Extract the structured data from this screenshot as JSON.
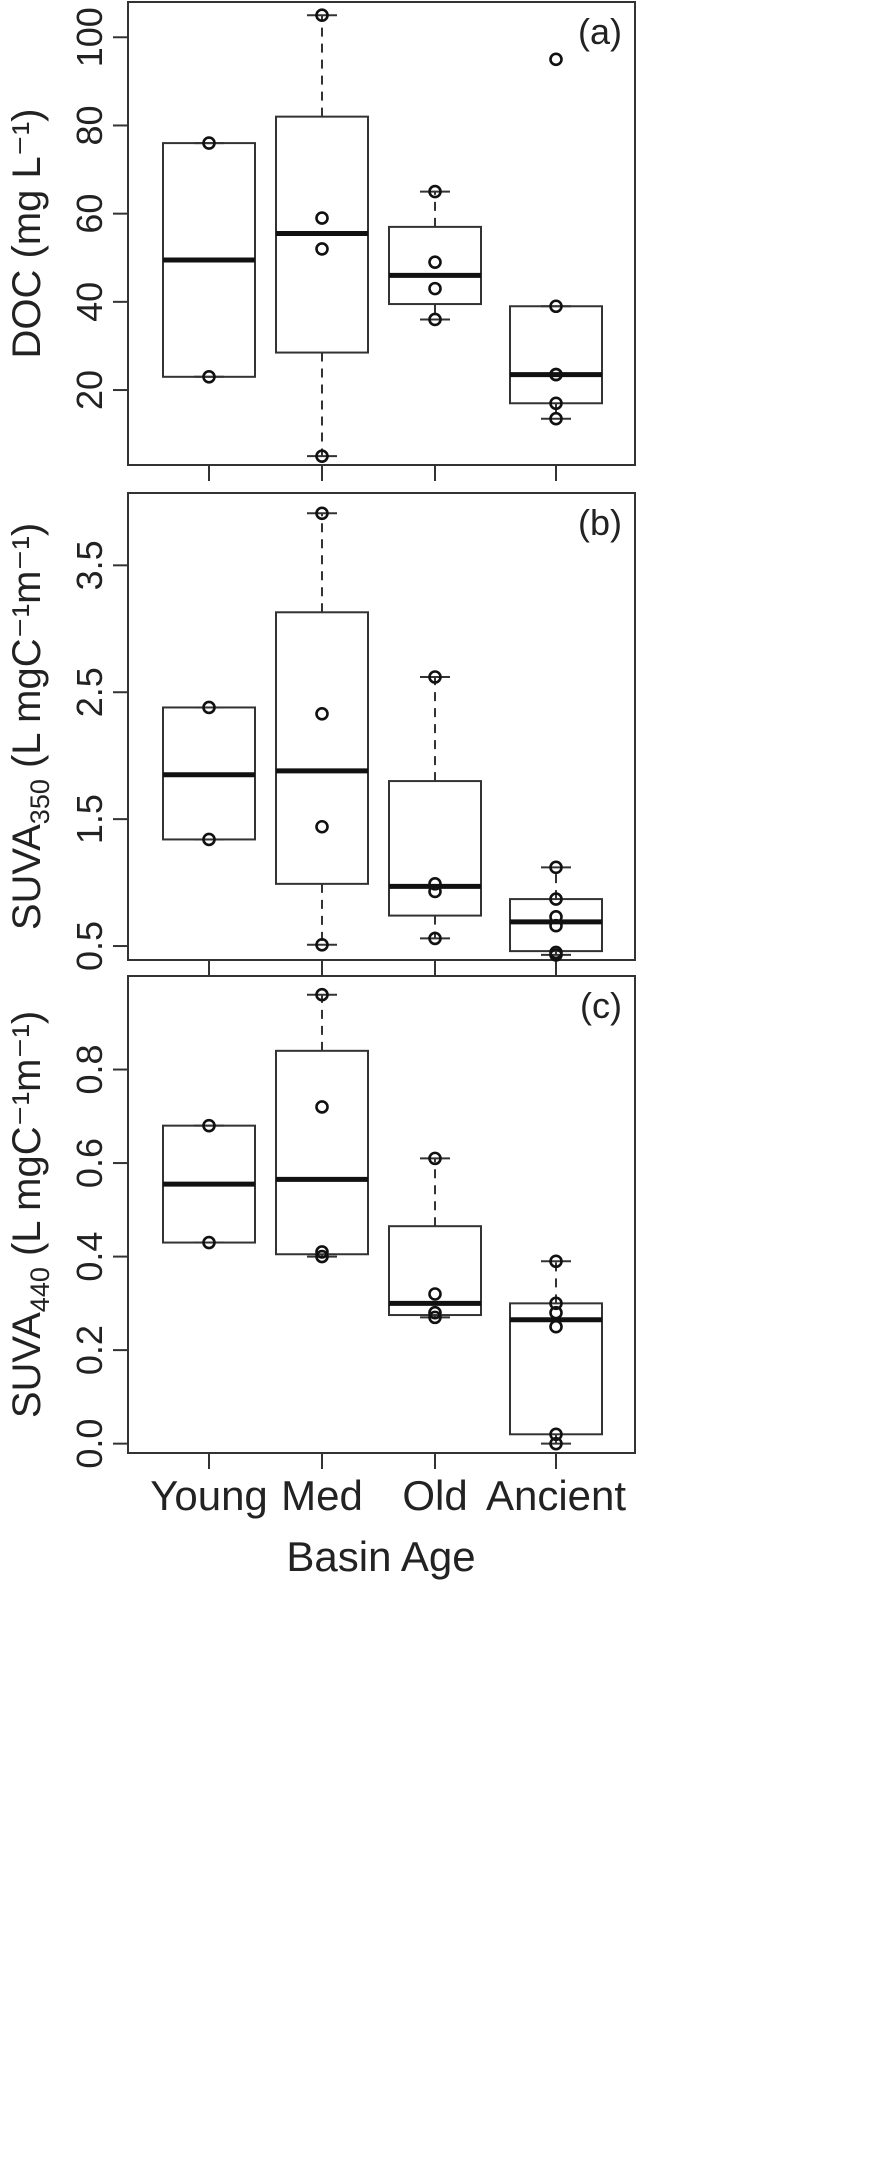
{
  "chart_data": [
    {
      "type": "box",
      "panel_label": "(a)",
      "ylabel": "DOC (mg L⁻¹)",
      "yticks": [
        20,
        40,
        60,
        80,
        100
      ],
      "ylim": [
        3,
        108
      ],
      "categories": [
        "Young",
        "Med",
        "Old",
        "Ancient"
      ],
      "boxes": [
        {
          "category": "Young",
          "q1": 23,
          "median": 49.5,
          "q3": 76,
          "whisker_low": 23,
          "whisker_high": 76,
          "points": [
            23,
            76
          ]
        },
        {
          "category": "Med",
          "q1": 28.5,
          "median": 55.5,
          "q3": 82,
          "whisker_low": 5,
          "whisker_high": 105,
          "points": [
            5,
            52,
            59,
            105
          ]
        },
        {
          "category": "Old",
          "q1": 39.5,
          "median": 46,
          "q3": 57,
          "whisker_low": 36,
          "whisker_high": 65,
          "points": [
            36,
            43,
            49,
            65
          ]
        },
        {
          "category": "Ancient",
          "q1": 17,
          "median": 23.5,
          "q3": 39,
          "whisker_low": 13.5,
          "whisker_high": 39,
          "points": [
            13.5,
            17,
            23.5,
            23.5,
            39,
            95
          ]
        }
      ]
    },
    {
      "type": "box",
      "panel_label": "(b)",
      "ylabel": "SUVA",
      "ylabel_sub": "350",
      "ylabel_suffix": " (L mgC⁻¹m⁻¹)",
      "yticks": [
        0.5,
        1.5,
        2.5,
        3.5
      ],
      "ylim": [
        0.39,
        4.07
      ],
      "categories": [
        "Young",
        "Med",
        "Old",
        "Ancient"
      ],
      "boxes": [
        {
          "category": "Young",
          "q1": 1.34,
          "median": 1.85,
          "q3": 2.38,
          "whisker_low": 1.34,
          "whisker_high": 2.38,
          "points": [
            1.34,
            2.38
          ]
        },
        {
          "category": "Med",
          "q1": 0.99,
          "median": 1.88,
          "q3": 3.13,
          "whisker_low": 0.51,
          "whisker_high": 3.91,
          "points": [
            0.51,
            1.44,
            2.33,
            3.91
          ]
        },
        {
          "category": "Old",
          "q1": 0.74,
          "median": 0.97,
          "q3": 1.8,
          "whisker_low": 0.56,
          "whisker_high": 2.62,
          "points": [
            0.56,
            0.93,
            0.99,
            2.62
          ]
        },
        {
          "category": "Ancient",
          "q1": 0.46,
          "median": 0.69,
          "q3": 0.87,
          "whisker_low": 0.43,
          "whisker_high": 1.12,
          "points": [
            0.43,
            0.45,
            0.66,
            0.73,
            0.87,
            1.12
          ]
        }
      ]
    },
    {
      "type": "box",
      "panel_label": "(c)",
      "ylabel": "SUVA",
      "ylabel_sub": "440",
      "ylabel_suffix": " (L mgC⁻¹m⁻¹)",
      "yticks": [
        0.0,
        0.2,
        0.4,
        0.6,
        0.8
      ],
      "ytick_labels": [
        "0.0",
        "0.2",
        "0.4",
        "0.6",
        "0.8"
      ],
      "ylim": [
        -0.02,
        1.0
      ],
      "categories": [
        "Young",
        "Med",
        "Old",
        "Ancient"
      ],
      "xlabel": "Basin Age",
      "boxes": [
        {
          "category": "Young",
          "q1": 0.43,
          "median": 0.555,
          "q3": 0.68,
          "whisker_low": 0.43,
          "whisker_high": 0.68,
          "points": [
            0.43,
            0.68
          ]
        },
        {
          "category": "Med",
          "q1": 0.405,
          "median": 0.565,
          "q3": 0.84,
          "whisker_low": 0.4,
          "whisker_high": 0.96,
          "points": [
            0.4,
            0.41,
            0.72,
            0.96
          ]
        },
        {
          "category": "Old",
          "q1": 0.275,
          "median": 0.3,
          "q3": 0.465,
          "whisker_low": 0.27,
          "whisker_high": 0.61,
          "points": [
            0.27,
            0.28,
            0.32,
            0.61
          ]
        },
        {
          "category": "Ancient",
          "q1": 0.02,
          "median": 0.265,
          "q3": 0.3,
          "whisker_low": 0.0,
          "whisker_high": 0.39,
          "points": [
            0.0,
            0.02,
            0.25,
            0.28,
            0.3,
            0.39
          ]
        }
      ]
    }
  ]
}
